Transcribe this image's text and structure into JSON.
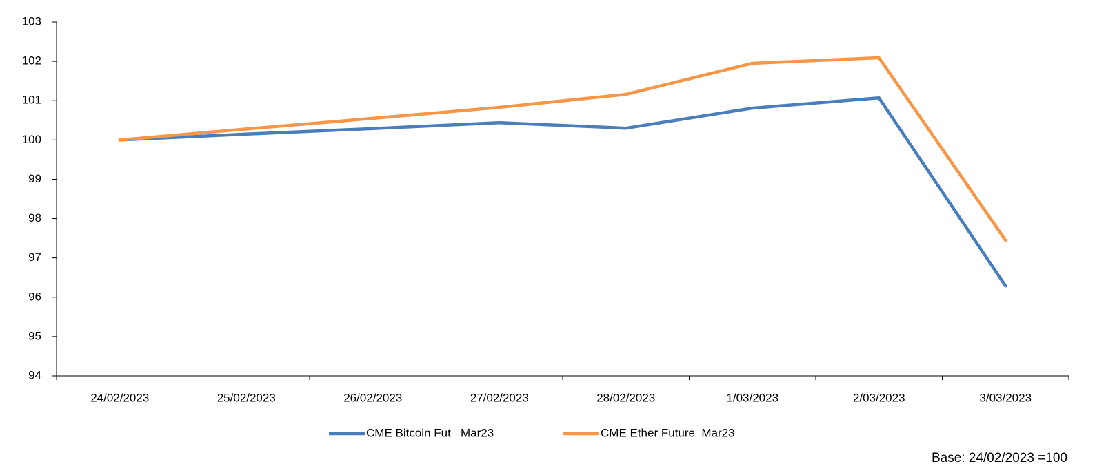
{
  "chart_data": {
    "type": "line",
    "categories": [
      "24/02/2023",
      "25/02/2023",
      "26/02/2023",
      "27/02/2023",
      "28/02/2023",
      "1/03/2023",
      "2/03/2023",
      "3/03/2023"
    ],
    "series": [
      {
        "name": "CME Bitcoin Fut   Mar23",
        "color": "#4a7ebb",
        "values": [
          100,
          100.15,
          100.29,
          100.44,
          100.3,
          100.81,
          101.07,
          96.29
        ]
      },
      {
        "name": "CME Ether Future  Mar23",
        "color": "#f79646",
        "values": [
          100,
          100.28,
          100.55,
          100.83,
          101.16,
          101.95,
          102.09,
          97.45
        ]
      }
    ],
    "ylim": [
      94,
      103
    ],
    "yticks": [
      94,
      95,
      96,
      97,
      98,
      99,
      100,
      101,
      102,
      103
    ],
    "grid": false,
    "note": "Base:  24/02/2023 =100"
  }
}
